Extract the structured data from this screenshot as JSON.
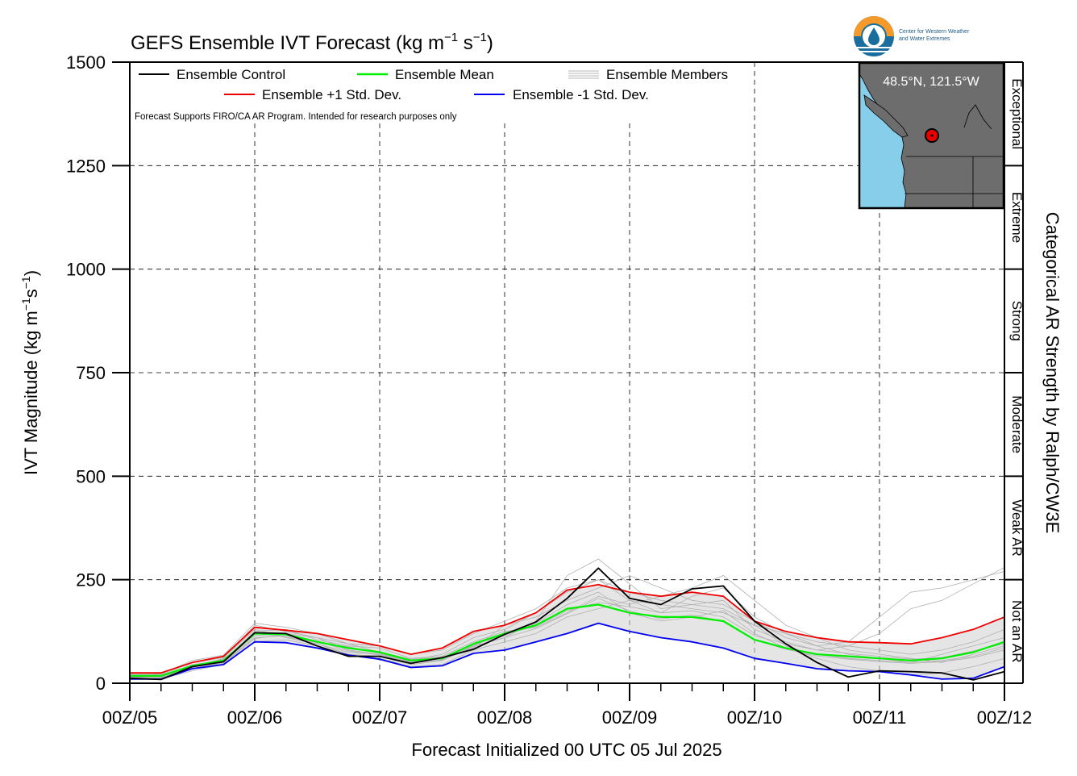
{
  "chart_data": {
    "type": "line",
    "title": "GEFS Ensemble IVT Forecast (kg m",
    "title_sup1": "−1",
    "title_mid": " s",
    "title_sup2": "−1",
    "title_end": ")",
    "ylabel": "IVT Magnitude (kg m",
    "ylabel_sup1": "−1",
    "ylabel_mid": "s",
    "ylabel_sup2": "−1",
    "ylabel_end": ")",
    "xlabel": "Forecast Initialized 00 UTC 05 Jul 2025",
    "right_label": "Categorical AR Strength by Ralph/CW3E",
    "note": "Forecast Supports FIRO/CA AR Program. Intended for research purposes only",
    "ylim": [
      0,
      1500
    ],
    "xlim": [
      0,
      168
    ],
    "yticks": [
      0,
      250,
      500,
      750,
      1000,
      1250,
      1500
    ],
    "xtick_labels": [
      "00Z/05",
      "00Z/06",
      "00Z/07",
      "00Z/08",
      "00Z/09",
      "00Z/10",
      "00Z/11",
      "00Z/12"
    ],
    "grid": "dashed",
    "legend": [
      {
        "label": "Ensemble Control",
        "color": "#000000"
      },
      {
        "label": "Ensemble Mean",
        "color": "#00ee00"
      },
      {
        "label": "Ensemble Members",
        "color": "#aaaaaa"
      },
      {
        "label": "Ensemble +1 Std. Dev.",
        "color": "#ee0000"
      },
      {
        "label": "Ensemble -1 Std. Dev.",
        "color": "#0000ee"
      }
    ],
    "categories": [
      {
        "label": "Not an AR",
        "range": [
          0,
          250
        ]
      },
      {
        "label": "Weak AR",
        "range": [
          250,
          500
        ]
      },
      {
        "label": "Moderate",
        "range": [
          500,
          750
        ]
      },
      {
        "label": "Strong",
        "range": [
          750,
          1000
        ]
      },
      {
        "label": "Extreme",
        "range": [
          1000,
          1250
        ]
      },
      {
        "label": "Exceptional",
        "range": [
          1250,
          1500
        ]
      }
    ],
    "inset": {
      "label": "48.5°N, 121.5°W"
    },
    "logo_text": [
      "Center for Western Weather",
      "and Water Extremes"
    ],
    "x": [
      0,
      6,
      12,
      18,
      24,
      30,
      36,
      42,
      48,
      54,
      60,
      66,
      72,
      78,
      84,
      90,
      96,
      102,
      108,
      114,
      120,
      126,
      132,
      138,
      144,
      150,
      156,
      162,
      168
    ],
    "series": [
      {
        "name": "Ensemble Control",
        "color": "#000000",
        "values": [
          12,
          9,
          40,
          52,
          122,
          120,
          90,
          65,
          65,
          48,
          62,
          82,
          118,
          148,
          205,
          278,
          205,
          190,
          228,
          235,
          150,
          95,
          50,
          15,
          30,
          28,
          25,
          8,
          28
        ]
      },
      {
        "name": "Ensemble Mean",
        "color": "#00ee00",
        "values": [
          18,
          18,
          42,
          55,
          120,
          118,
          100,
          85,
          75,
          55,
          60,
          95,
          120,
          140,
          180,
          190,
          170,
          160,
          160,
          150,
          105,
          85,
          70,
          65,
          60,
          55,
          60,
          75,
          100
        ]
      },
      {
        "name": "Ensemble +1 Std. Dev.",
        "color": "#ee0000",
        "values": [
          25,
          25,
          50,
          65,
          135,
          128,
          120,
          105,
          90,
          70,
          85,
          125,
          140,
          170,
          225,
          238,
          220,
          210,
          220,
          210,
          150,
          125,
          110,
          100,
          98,
          95,
          110,
          130,
          160
        ]
      },
      {
        "name": "Ensemble -1 Std. Dev.",
        "color": "#0000ee",
        "values": [
          10,
          10,
          35,
          45,
          100,
          98,
          85,
          68,
          58,
          38,
          42,
          72,
          80,
          100,
          120,
          145,
          125,
          110,
          100,
          85,
          60,
          48,
          35,
          30,
          28,
          20,
          10,
          12,
          40
        ]
      }
    ],
    "members": [
      [
        20,
        15,
        40,
        60,
        140,
        125,
        110,
        80,
        70,
        55,
        70,
        110,
        130,
        170,
        220,
        250,
        200,
        170,
        210,
        230,
        160,
        120,
        90,
        70,
        60,
        50,
        70,
        90,
        110
      ],
      [
        15,
        12,
        35,
        50,
        110,
        115,
        95,
        70,
        65,
        45,
        55,
        90,
        110,
        150,
        260,
        300,
        240,
        180,
        190,
        200,
        130,
        100,
        80,
        90,
        120,
        180,
        200,
        240,
        280
      ],
      [
        18,
        16,
        45,
        55,
        125,
        130,
        105,
        90,
        85,
        60,
        65,
        100,
        125,
        135,
        170,
        210,
        190,
        210,
        230,
        260,
        200,
        140,
        110,
        80,
        70,
        60,
        50,
        70,
        90
      ],
      [
        22,
        20,
        50,
        62,
        130,
        110,
        95,
        75,
        70,
        50,
        60,
        85,
        140,
        160,
        200,
        230,
        260,
        230,
        200,
        190,
        150,
        110,
        90,
        100,
        160,
        220,
        230,
        250,
        270
      ],
      [
        12,
        10,
        30,
        45,
        100,
        105,
        90,
        70,
        60,
        40,
        45,
        80,
        100,
        120,
        160,
        180,
        200,
        190,
        180,
        170,
        140,
        90,
        60,
        40,
        30,
        20,
        25,
        40,
        60
      ],
      [
        25,
        22,
        55,
        68,
        145,
        135,
        120,
        95,
        90,
        70,
        80,
        120,
        150,
        180,
        230,
        250,
        220,
        200,
        190,
        180,
        140,
        120,
        100,
        90,
        80,
        70,
        80,
        100,
        130
      ],
      [
        14,
        12,
        38,
        52,
        115,
        120,
        110,
        95,
        75,
        58,
        62,
        95,
        115,
        145,
        190,
        220,
        170,
        150,
        160,
        175,
        120,
        85,
        70,
        60,
        55,
        50,
        55,
        65,
        85
      ],
      [
        20,
        18,
        42,
        58,
        120,
        112,
        98,
        88,
        72,
        52,
        58,
        92,
        118,
        138,
        175,
        195,
        185,
        170,
        175,
        160,
        115,
        95,
        80,
        72,
        65,
        58,
        62,
        78,
        95
      ],
      [
        16,
        14,
        36,
        48,
        108,
        118,
        102,
        78,
        68,
        50,
        56,
        88,
        110,
        132,
        168,
        205,
        175,
        155,
        165,
        150,
        105,
        82,
        66,
        58,
        52,
        48,
        52,
        62,
        80
      ]
    ]
  }
}
